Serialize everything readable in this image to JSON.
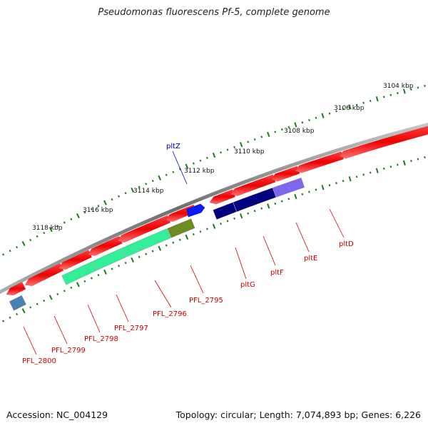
{
  "header": {
    "title": "Pseudomonas fluorescens Pf-5, complete genome"
  },
  "footer": {
    "accession": "Accession: NC_004129",
    "summary": "Topology: circular; Length: 7,074,893 bp; Genes: 6,226"
  },
  "ruler": {
    "ticks": [
      {
        "label": "3104 kbp"
      },
      {
        "label": "3106 kbp"
      },
      {
        "label": "3108 kbp"
      },
      {
        "label": "3110 kbp"
      },
      {
        "label": "3112 kbp"
      },
      {
        "label": "3114 kbp"
      },
      {
        "label": "3116 kbp"
      },
      {
        "label": "3118 kbp"
      }
    ]
  },
  "genes": [
    {
      "label": "pltZ",
      "color": "#0000ff"
    },
    {
      "label": "PFL_2795",
      "color": "#ff0000"
    },
    {
      "label": "PFL_2796",
      "color": "#ff0000"
    },
    {
      "label": "PFL_2797",
      "color": "#ff0000"
    },
    {
      "label": "PFL_2798",
      "color": "#ff0000"
    },
    {
      "label": "PFL_2799",
      "color": "#ff0000"
    },
    {
      "label": "PFL_2800",
      "color": "#ff0000"
    },
    {
      "label": "pltG",
      "color": "#ff0000"
    },
    {
      "label": "pltF",
      "color": "#ff0000"
    },
    {
      "label": "pltE",
      "color": "#ff0000"
    },
    {
      "label": "pltD",
      "color": "#ff0000"
    }
  ],
  "colors": {
    "backbone": "#808080",
    "forward_gene": "#ff0000",
    "reverse_gene": "#0000ff",
    "tick": "#1a7a1a",
    "cog_cyan": "#33ee99",
    "cog_olive": "#6b8e23",
    "cog_navy": "#000080",
    "cog_lavender": "#7b68ee",
    "cog_steel": "#4682b4"
  }
}
